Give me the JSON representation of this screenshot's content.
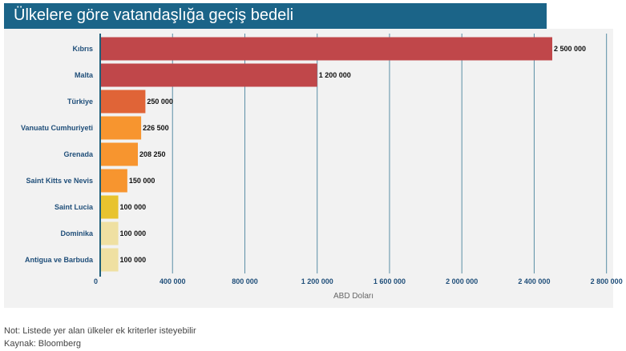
{
  "title": "Ülkelere göre vatandaşlığa geçiş bedeli",
  "footer": {
    "note": "Not: Listede yer alan ülkeler ek kriterler isteyebilir",
    "source": "Kaynak: Bloomberg"
  },
  "colors": {
    "title_bg": "#1b6488",
    "plot_bg": "#f2f2f2",
    "axis": "#1f5f7a",
    "grid": "#5a8fa6",
    "category_label": "#1f4e79"
  },
  "chart_data": {
    "type": "bar",
    "orientation": "horizontal",
    "title": "Ülkelere göre vatandaşlığa geçiş bedeli",
    "xlabel": "ABD Doları",
    "ylabel": "",
    "xlim": [
      0,
      2800000
    ],
    "grid": true,
    "legend": "none",
    "x_ticks": [
      0,
      400000,
      800000,
      1200000,
      1600000,
      2000000,
      2400000,
      2800000
    ],
    "x_tick_labels": [
      "0",
      "400 000",
      "800 000",
      "1 200 000",
      "1 600 000",
      "2 000 000",
      "2 400 000",
      "2 800 000"
    ],
    "categories": [
      "Kıbrıs",
      "Malta",
      "Türkiye",
      "Vanuatu Cumhuriyeti",
      "Grenada",
      "Saint Kitts ve Nevis",
      "Saint Lucia",
      "Dominika",
      "Antigua ve Barbuda"
    ],
    "values": [
      2500000,
      1200000,
      250000,
      226500,
      208250,
      150000,
      100000,
      100000,
      100000
    ],
    "value_labels": [
      "2 500 000",
      "1 200 000",
      "250 000",
      "226 500",
      "208 250",
      "150 000",
      "100 000",
      "100 000",
      "100 000"
    ],
    "bar_colors": [
      "#c0474a",
      "#c0474a",
      "#e06437",
      "#f7952f",
      "#f7952f",
      "#f7952f",
      "#e8c32e",
      "#efe0a2",
      "#efe0a2"
    ]
  }
}
